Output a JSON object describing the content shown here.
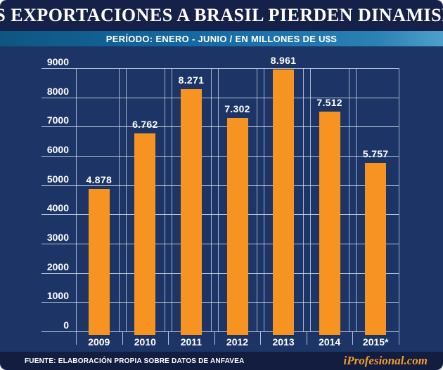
{
  "header": {
    "title": "LAS EXPORTACIONES A BRASIL PIERDEN DINAMISMO"
  },
  "subtitle_band": {
    "text": "PERÍODO: ENERO - JUNIO / EN MILLONES DE U$S"
  },
  "chart_data": {
    "type": "bar",
    "title": "LAS EXPORTACIONES A BRASIL PIERDEN DINAMISMO",
    "subtitle": "PERÍODO: ENERO - JUNIO / EN MILLONES DE U$S",
    "categories": [
      "2009",
      "2010",
      "2011",
      "2012",
      "2013",
      "2014",
      "2015*"
    ],
    "values": [
      4878,
      6762,
      8271,
      7302,
      8961,
      7512,
      5757
    ],
    "value_labels": [
      "4.878",
      "6.762",
      "8.271",
      "7.302",
      "8.961",
      "7.512",
      "5.757"
    ],
    "xlabel": "",
    "ylabel": "",
    "ylim": [
      0,
      9000
    ],
    "ytick_interval": 1000,
    "ytick_labels": [
      "9000",
      "8000",
      "7000",
      "6000",
      "5000",
      "4000",
      "3000",
      "2000",
      "1000",
      "0"
    ],
    "grid": true,
    "legend_position": "none",
    "bar_color": "#f79421",
    "background_color": "#1d3566",
    "gridline_color": "#d6e2f4"
  },
  "footer": {
    "source": "FUENTE: ELABORACIÓN PROPIA SOBRE DATOS DE ANFAVEA",
    "brand": "iProfesional.com"
  }
}
